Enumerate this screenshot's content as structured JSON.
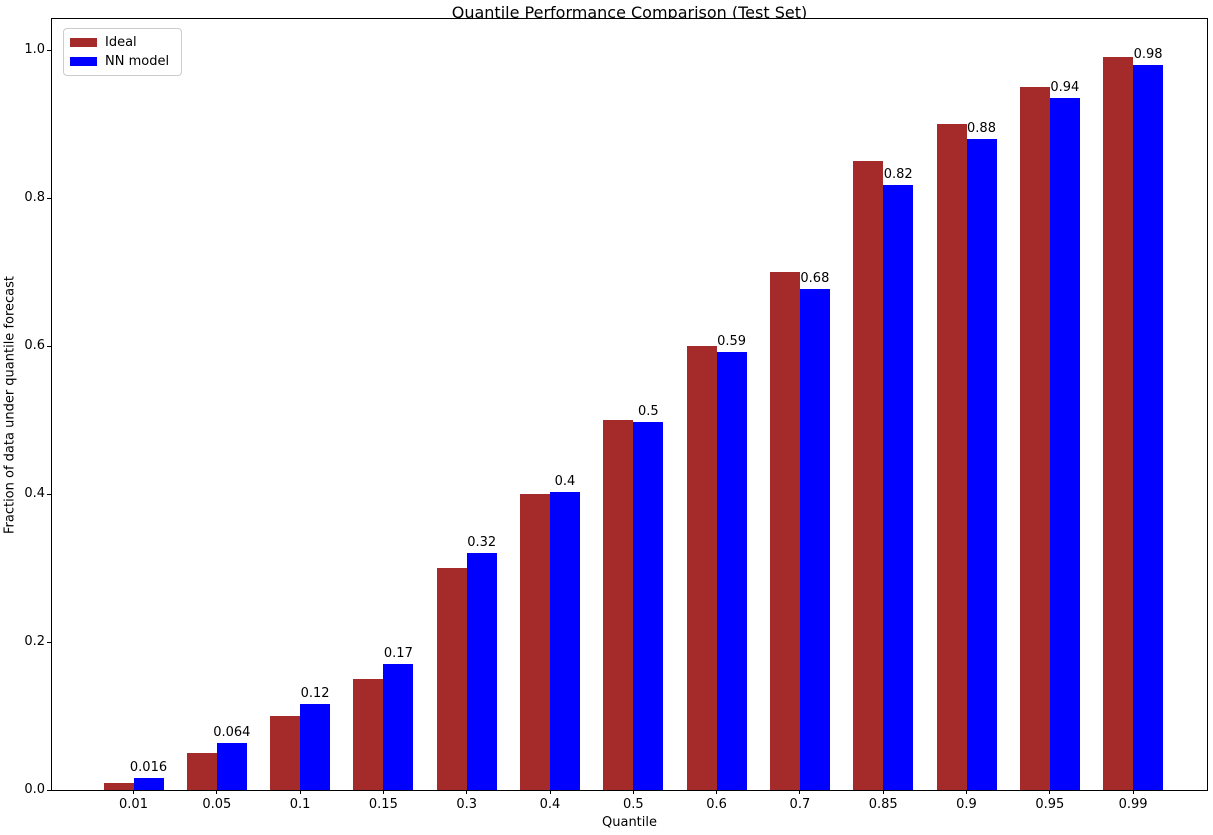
{
  "chart_data": {
    "type": "bar",
    "title": "Quantile Performance Comparison (Test Set)",
    "xlabel": "Quantile",
    "ylabel": "Fraction of data under quantile forecast",
    "categories": [
      "0.01",
      "0.05",
      "0.1",
      "0.15",
      "0.3",
      "0.4",
      "0.5",
      "0.6",
      "0.7",
      "0.85",
      "0.9",
      "0.95",
      "0.99"
    ],
    "series": [
      {
        "name": "Ideal",
        "color": "#A52A2A",
        "values": [
          0.01,
          0.05,
          0.1,
          0.15,
          0.3,
          0.4,
          0.5,
          0.6,
          0.7,
          0.85,
          0.9,
          0.95,
          0.99
        ]
      },
      {
        "name": "NN model",
        "color": "#0000FF",
        "values": [
          0.016,
          0.064,
          0.116,
          0.17,
          0.32,
          0.403,
          0.497,
          0.592,
          0.677,
          0.818,
          0.88,
          0.935,
          0.98
        ],
        "bar_labels": [
          "0.016",
          "0.064",
          "0.12",
          "0.17",
          "0.32",
          "0.4",
          "0.5",
          "0.59",
          "0.68",
          "0.82",
          "0.88",
          "0.94",
          "0.98"
        ]
      }
    ],
    "ylim": [
      0.0,
      1.045
    ],
    "yticks": [
      0.0,
      0.2,
      0.4,
      0.6,
      0.8,
      1.0
    ],
    "ytick_labels": [
      "0.0",
      "0.2",
      "0.4",
      "0.6",
      "0.8",
      "1.0"
    ],
    "grid": false,
    "legend_position": "upper left",
    "bar_labels_on": "NN model"
  },
  "legend": {
    "items": [
      {
        "label": "Ideal",
        "color": "#A52A2A"
      },
      {
        "label": "NN model",
        "color": "#0000FF"
      }
    ]
  }
}
